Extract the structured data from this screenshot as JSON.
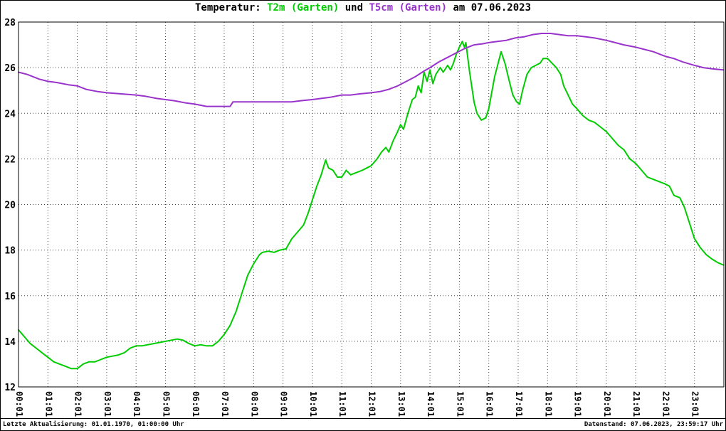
{
  "title": {
    "prefix": "Temperatur: ",
    "series1": "T2m (Garten)",
    "mid": " und ",
    "series2": "T5cm (Garten)",
    "suffix": " am 07.06.2023"
  },
  "footer": {
    "left": "Letzte Aktualisierung: 01.01.1970, 01:00:00 Uhr",
    "right": "Datenstand: 07.06.2023, 23:59:17 Uhr"
  },
  "colors": {
    "t2m": "#00cc00",
    "t5cm": "#9933cc",
    "grid": "#444444",
    "axis": "#000000"
  },
  "chart_data": {
    "type": "line",
    "title": "Temperatur: T2m (Garten) und T5cm (Garten) am 07.06.2023",
    "xlabel": "",
    "ylabel": "",
    "grid": true,
    "legend_position": "none",
    "ylim": [
      12,
      28
    ],
    "yticks": [
      12,
      14,
      16,
      18,
      20,
      22,
      24,
      26,
      28
    ],
    "x_range": [
      0,
      24
    ],
    "xticks": [
      "00:01",
      "01:01",
      "02:01",
      "03:01",
      "04:01",
      "05:01",
      "06:01",
      "07:01",
      "08:01",
      "09:01",
      "10:01",
      "11:01",
      "12:01",
      "13:01",
      "14:01",
      "15:01",
      "16:01",
      "17:01",
      "18:01",
      "19:01",
      "20:01",
      "21:01",
      "22:01",
      "23:01"
    ],
    "series": [
      {
        "id": "t2m",
        "name": "T2m (Garten)",
        "color": "#00cc00",
        "points": [
          [
            0,
            14.5
          ],
          [
            0.2,
            14.2
          ],
          [
            0.4,
            13.9
          ],
          [
            0.6,
            13.7
          ],
          [
            0.8,
            13.5
          ],
          [
            1.0,
            13.3
          ],
          [
            1.2,
            13.1
          ],
          [
            1.4,
            13.0
          ],
          [
            1.6,
            12.9
          ],
          [
            1.8,
            12.8
          ],
          [
            2.0,
            12.8
          ],
          [
            2.2,
            13.0
          ],
          [
            2.4,
            13.1
          ],
          [
            2.6,
            13.1
          ],
          [
            2.8,
            13.2
          ],
          [
            3.0,
            13.3
          ],
          [
            3.2,
            13.35
          ],
          [
            3.4,
            13.4
          ],
          [
            3.6,
            13.5
          ],
          [
            3.8,
            13.7
          ],
          [
            4.0,
            13.8
          ],
          [
            4.2,
            13.8
          ],
          [
            4.4,
            13.85
          ],
          [
            4.6,
            13.9
          ],
          [
            4.8,
            13.95
          ],
          [
            5.0,
            14.0
          ],
          [
            5.2,
            14.05
          ],
          [
            5.4,
            14.1
          ],
          [
            5.6,
            14.05
          ],
          [
            5.8,
            13.9
          ],
          [
            6.0,
            13.8
          ],
          [
            6.2,
            13.85
          ],
          [
            6.4,
            13.8
          ],
          [
            6.6,
            13.8
          ],
          [
            6.8,
            14.0
          ],
          [
            7.0,
            14.3
          ],
          [
            7.2,
            14.7
          ],
          [
            7.4,
            15.3
          ],
          [
            7.6,
            16.1
          ],
          [
            7.8,
            16.9
          ],
          [
            8.0,
            17.4
          ],
          [
            8.2,
            17.8
          ],
          [
            8.3,
            17.9
          ],
          [
            8.5,
            17.95
          ],
          [
            8.7,
            17.9
          ],
          [
            8.9,
            18.0
          ],
          [
            9.1,
            18.05
          ],
          [
            9.3,
            18.5
          ],
          [
            9.5,
            18.8
          ],
          [
            9.7,
            19.1
          ],
          [
            9.85,
            19.6
          ],
          [
            10.0,
            20.2
          ],
          [
            10.15,
            20.8
          ],
          [
            10.3,
            21.3
          ],
          [
            10.45,
            21.95
          ],
          [
            10.55,
            21.6
          ],
          [
            10.7,
            21.5
          ],
          [
            10.85,
            21.2
          ],
          [
            11.0,
            21.2
          ],
          [
            11.15,
            21.5
          ],
          [
            11.3,
            21.3
          ],
          [
            11.5,
            21.4
          ],
          [
            11.7,
            21.5
          ],
          [
            11.85,
            21.6
          ],
          [
            12.0,
            21.7
          ],
          [
            12.2,
            22.0
          ],
          [
            12.35,
            22.3
          ],
          [
            12.5,
            22.5
          ],
          [
            12.6,
            22.3
          ],
          [
            12.75,
            22.8
          ],
          [
            12.9,
            23.2
          ],
          [
            13.0,
            23.5
          ],
          [
            13.1,
            23.3
          ],
          [
            13.25,
            24.0
          ],
          [
            13.4,
            24.6
          ],
          [
            13.5,
            24.7
          ],
          [
            13.6,
            25.2
          ],
          [
            13.7,
            24.9
          ],
          [
            13.8,
            25.8
          ],
          [
            13.9,
            25.4
          ],
          [
            14.0,
            25.9
          ],
          [
            14.1,
            25.3
          ],
          [
            14.2,
            25.7
          ],
          [
            14.35,
            26.0
          ],
          [
            14.45,
            25.8
          ],
          [
            14.6,
            26.1
          ],
          [
            14.7,
            25.9
          ],
          [
            14.8,
            26.2
          ],
          [
            14.9,
            26.6
          ],
          [
            15.0,
            26.9
          ],
          [
            15.1,
            27.15
          ],
          [
            15.17,
            26.9
          ],
          [
            15.22,
            27.1
          ],
          [
            15.35,
            25.8
          ],
          [
            15.5,
            24.5
          ],
          [
            15.6,
            24.0
          ],
          [
            15.75,
            23.7
          ],
          [
            15.9,
            23.8
          ],
          [
            16.0,
            24.2
          ],
          [
            16.1,
            24.9
          ],
          [
            16.2,
            25.6
          ],
          [
            16.3,
            26.1
          ],
          [
            16.42,
            26.7
          ],
          [
            16.55,
            26.2
          ],
          [
            16.7,
            25.4
          ],
          [
            16.82,
            24.8
          ],
          [
            16.95,
            24.5
          ],
          [
            17.05,
            24.4
          ],
          [
            17.15,
            25.0
          ],
          [
            17.3,
            25.7
          ],
          [
            17.45,
            26.0
          ],
          [
            17.6,
            26.1
          ],
          [
            17.75,
            26.2
          ],
          [
            17.85,
            26.4
          ],
          [
            18.0,
            26.4
          ],
          [
            18.15,
            26.2
          ],
          [
            18.3,
            26.0
          ],
          [
            18.45,
            25.7
          ],
          [
            18.55,
            25.2
          ],
          [
            18.7,
            24.8
          ],
          [
            18.85,
            24.4
          ],
          [
            19.0,
            24.2
          ],
          [
            19.2,
            23.9
          ],
          [
            19.4,
            23.7
          ],
          [
            19.6,
            23.6
          ],
          [
            19.8,
            23.4
          ],
          [
            20.0,
            23.2
          ],
          [
            20.2,
            22.9
          ],
          [
            20.4,
            22.6
          ],
          [
            20.6,
            22.4
          ],
          [
            20.8,
            22.0
          ],
          [
            21.0,
            21.8
          ],
          [
            21.2,
            21.5
          ],
          [
            21.4,
            21.2
          ],
          [
            21.6,
            21.1
          ],
          [
            21.8,
            21.0
          ],
          [
            22.0,
            20.9
          ],
          [
            22.15,
            20.8
          ],
          [
            22.3,
            20.4
          ],
          [
            22.5,
            20.3
          ],
          [
            22.65,
            19.9
          ],
          [
            22.8,
            19.3
          ],
          [
            23.0,
            18.5
          ],
          [
            23.2,
            18.1
          ],
          [
            23.4,
            17.8
          ],
          [
            23.6,
            17.6
          ],
          [
            23.8,
            17.45
          ],
          [
            23.97,
            17.35
          ]
        ]
      },
      {
        "id": "t5cm",
        "name": "T5cm (Garten)",
        "color": "#9933cc",
        "points": [
          [
            0,
            25.8
          ],
          [
            0.3,
            25.7
          ],
          [
            0.7,
            25.5
          ],
          [
            1.0,
            25.4
          ],
          [
            1.3,
            25.35
          ],
          [
            1.7,
            25.25
          ],
          [
            2.0,
            25.2
          ],
          [
            2.3,
            25.05
          ],
          [
            2.7,
            24.95
          ],
          [
            3.0,
            24.9
          ],
          [
            3.5,
            24.85
          ],
          [
            4.0,
            24.8
          ],
          [
            4.3,
            24.75
          ],
          [
            4.7,
            24.65
          ],
          [
            5.0,
            24.6
          ],
          [
            5.3,
            24.55
          ],
          [
            5.7,
            24.45
          ],
          [
            6.0,
            24.4
          ],
          [
            6.2,
            24.35
          ],
          [
            6.4,
            24.3
          ],
          [
            7.0,
            24.3
          ],
          [
            7.2,
            24.3
          ],
          [
            7.3,
            24.5
          ],
          [
            7.6,
            24.5
          ],
          [
            8.0,
            24.5
          ],
          [
            8.5,
            24.5
          ],
          [
            9.0,
            24.5
          ],
          [
            9.3,
            24.5
          ],
          [
            9.6,
            24.55
          ],
          [
            10.0,
            24.6
          ],
          [
            10.3,
            24.65
          ],
          [
            10.6,
            24.7
          ],
          [
            11.0,
            24.8
          ],
          [
            11.3,
            24.8
          ],
          [
            11.6,
            24.85
          ],
          [
            12.0,
            24.9
          ],
          [
            12.3,
            24.95
          ],
          [
            12.6,
            25.05
          ],
          [
            12.9,
            25.2
          ],
          [
            13.2,
            25.4
          ],
          [
            13.5,
            25.6
          ],
          [
            13.8,
            25.85
          ],
          [
            14.0,
            26.0
          ],
          [
            14.3,
            26.25
          ],
          [
            14.6,
            26.45
          ],
          [
            14.9,
            26.65
          ],
          [
            15.2,
            26.85
          ],
          [
            15.5,
            27.0
          ],
          [
            15.8,
            27.05
          ],
          [
            16.0,
            27.1
          ],
          [
            16.3,
            27.15
          ],
          [
            16.6,
            27.2
          ],
          [
            16.9,
            27.3
          ],
          [
            17.2,
            27.35
          ],
          [
            17.5,
            27.45
          ],
          [
            17.8,
            27.5
          ],
          [
            18.1,
            27.5
          ],
          [
            18.4,
            27.45
          ],
          [
            18.7,
            27.4
          ],
          [
            19.0,
            27.4
          ],
          [
            19.3,
            27.35
          ],
          [
            19.6,
            27.3
          ],
          [
            20.0,
            27.2
          ],
          [
            20.3,
            27.1
          ],
          [
            20.6,
            27.0
          ],
          [
            21.0,
            26.9
          ],
          [
            21.3,
            26.8
          ],
          [
            21.6,
            26.7
          ],
          [
            22.0,
            26.5
          ],
          [
            22.3,
            26.4
          ],
          [
            22.6,
            26.25
          ],
          [
            23.0,
            26.1
          ],
          [
            23.3,
            26.0
          ],
          [
            23.6,
            25.95
          ],
          [
            23.97,
            25.9
          ]
        ]
      }
    ]
  }
}
